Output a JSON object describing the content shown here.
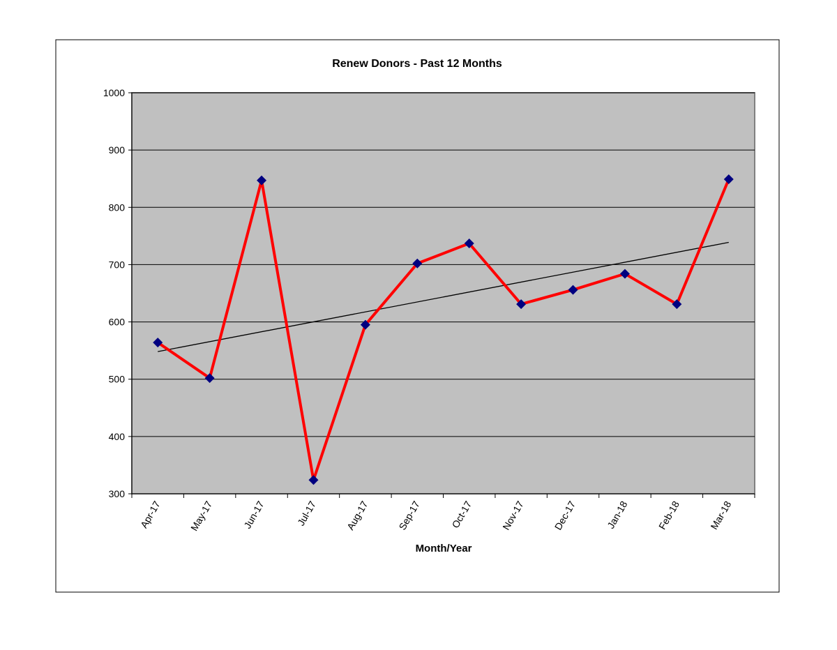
{
  "chart_data": {
    "type": "line",
    "title": "Renew Donors - Past 12 Months",
    "x_label": "Month/Year",
    "categories": [
      "Apr-17",
      "May-17",
      "Jun-17",
      "Jul-17",
      "Aug-17",
      "Sep-17",
      "Oct-17",
      "Nov-17",
      "Dec-17",
      "Jan-18",
      "Feb-18",
      "Mar-18"
    ],
    "series": [
      {
        "name": "Renew Donors",
        "color": "#ff0000",
        "marker_color": "#000080",
        "values": [
          564,
          502,
          847,
          324,
          595,
          702,
          737,
          631,
          656,
          684,
          631,
          849
        ]
      }
    ],
    "ylim": [
      300,
      1000
    ],
    "yticks": [
      300,
      400,
      500,
      600,
      700,
      800,
      900,
      1000
    ],
    "grid": true,
    "trendline": true,
    "plot_background": "#c0c0c0"
  }
}
